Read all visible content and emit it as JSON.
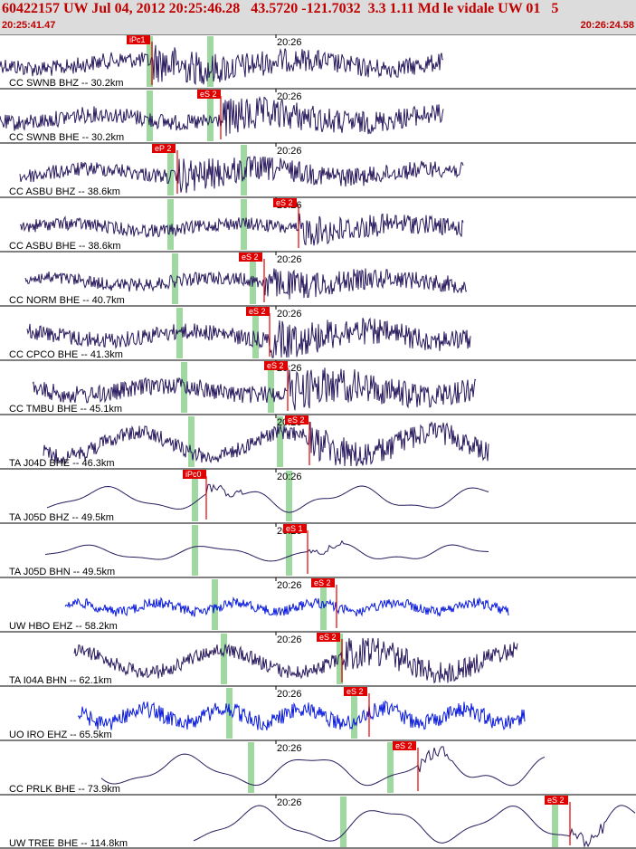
{
  "header": {
    "title": "60422157 UW Jul 04, 2012 20:25:46.28   43.5720 -121.7032  3.3 1.11 Md le vidale UW 01   5",
    "start_time": "20:25:41.47",
    "end_time": "20:26:24.58"
  },
  "colors": {
    "trace": "#2a1a5e",
    "trace_blue": "#0a1adc",
    "pick": "#e00000",
    "pick_label_bg": "#e00000",
    "window": "#9fd8a0",
    "header_bg": "#dcdcdc",
    "header_text": "#c00000"
  },
  "chart_data": {
    "type": "line",
    "title": "",
    "x_axis": {
      "start": "20:25:41.47",
      "end": "20:26:24.58",
      "tick_label": "20:26"
    },
    "series": [
      {
        "name": "CC SWNB BHZ -- 30.2km",
        "color": "trace",
        "pick_label": "iPc1",
        "pick_color": "pick"
      },
      {
        "name": "CC SWNB BHE -- 30.2km",
        "color": "trace",
        "pick_label": "eS 2",
        "pick_color": "pick"
      },
      {
        "name": "CC ASBU BHZ -- 38.6km",
        "color": "trace",
        "pick_label": "eP 2",
        "pick_color": "pick"
      },
      {
        "name": "CC ASBU BHE -- 38.6km",
        "color": "trace",
        "pick_label": "eS 2",
        "pick_color": "pick"
      },
      {
        "name": "CC NORM BHE -- 40.7km",
        "color": "trace",
        "pick_label": "eS 2",
        "pick_color": "pick"
      },
      {
        "name": "CC CPCO BHE -- 41.3km",
        "color": "trace",
        "pick_label": "eS 2",
        "pick_color": "pick"
      },
      {
        "name": "CC TMBU BHE -- 45.1km",
        "color": "trace",
        "pick_label": "eS 2",
        "pick_color": "pick"
      },
      {
        "name": "TA J04D BHE -- 46.3km",
        "color": "trace",
        "pick_label": "eS 2",
        "pick_color": "pick"
      },
      {
        "name": "TA J05D BHZ -- 49.5km",
        "color": "trace",
        "pick_label": "iPc0",
        "pick_color": "pick"
      },
      {
        "name": "TA J05D BHN -- 49.5km",
        "color": "trace",
        "pick_label": "eS 1",
        "pick_color": "pick"
      },
      {
        "name": "UW HBO EHZ -- 58.2km",
        "color": "trace_blue",
        "pick_label": "eS 2",
        "pick_color": "pick"
      },
      {
        "name": "TA I04A BHN -- 62.1km",
        "color": "trace",
        "pick_label": "eS 2",
        "pick_color": "pick"
      },
      {
        "name": "UO IRO EHZ -- 65.5km",
        "color": "trace_blue",
        "pick_label": "eS 2",
        "pick_color": "pick"
      },
      {
        "name": "CC PRLK BHE -- 73.9km",
        "color": "trace",
        "pick_label": "eS 2",
        "pick_color": "pick"
      },
      {
        "name": "UW TREE BHE -- 114.8km",
        "color": "trace",
        "pick_label": "eS 2",
        "pick_color": "pick"
      }
    ]
  }
}
